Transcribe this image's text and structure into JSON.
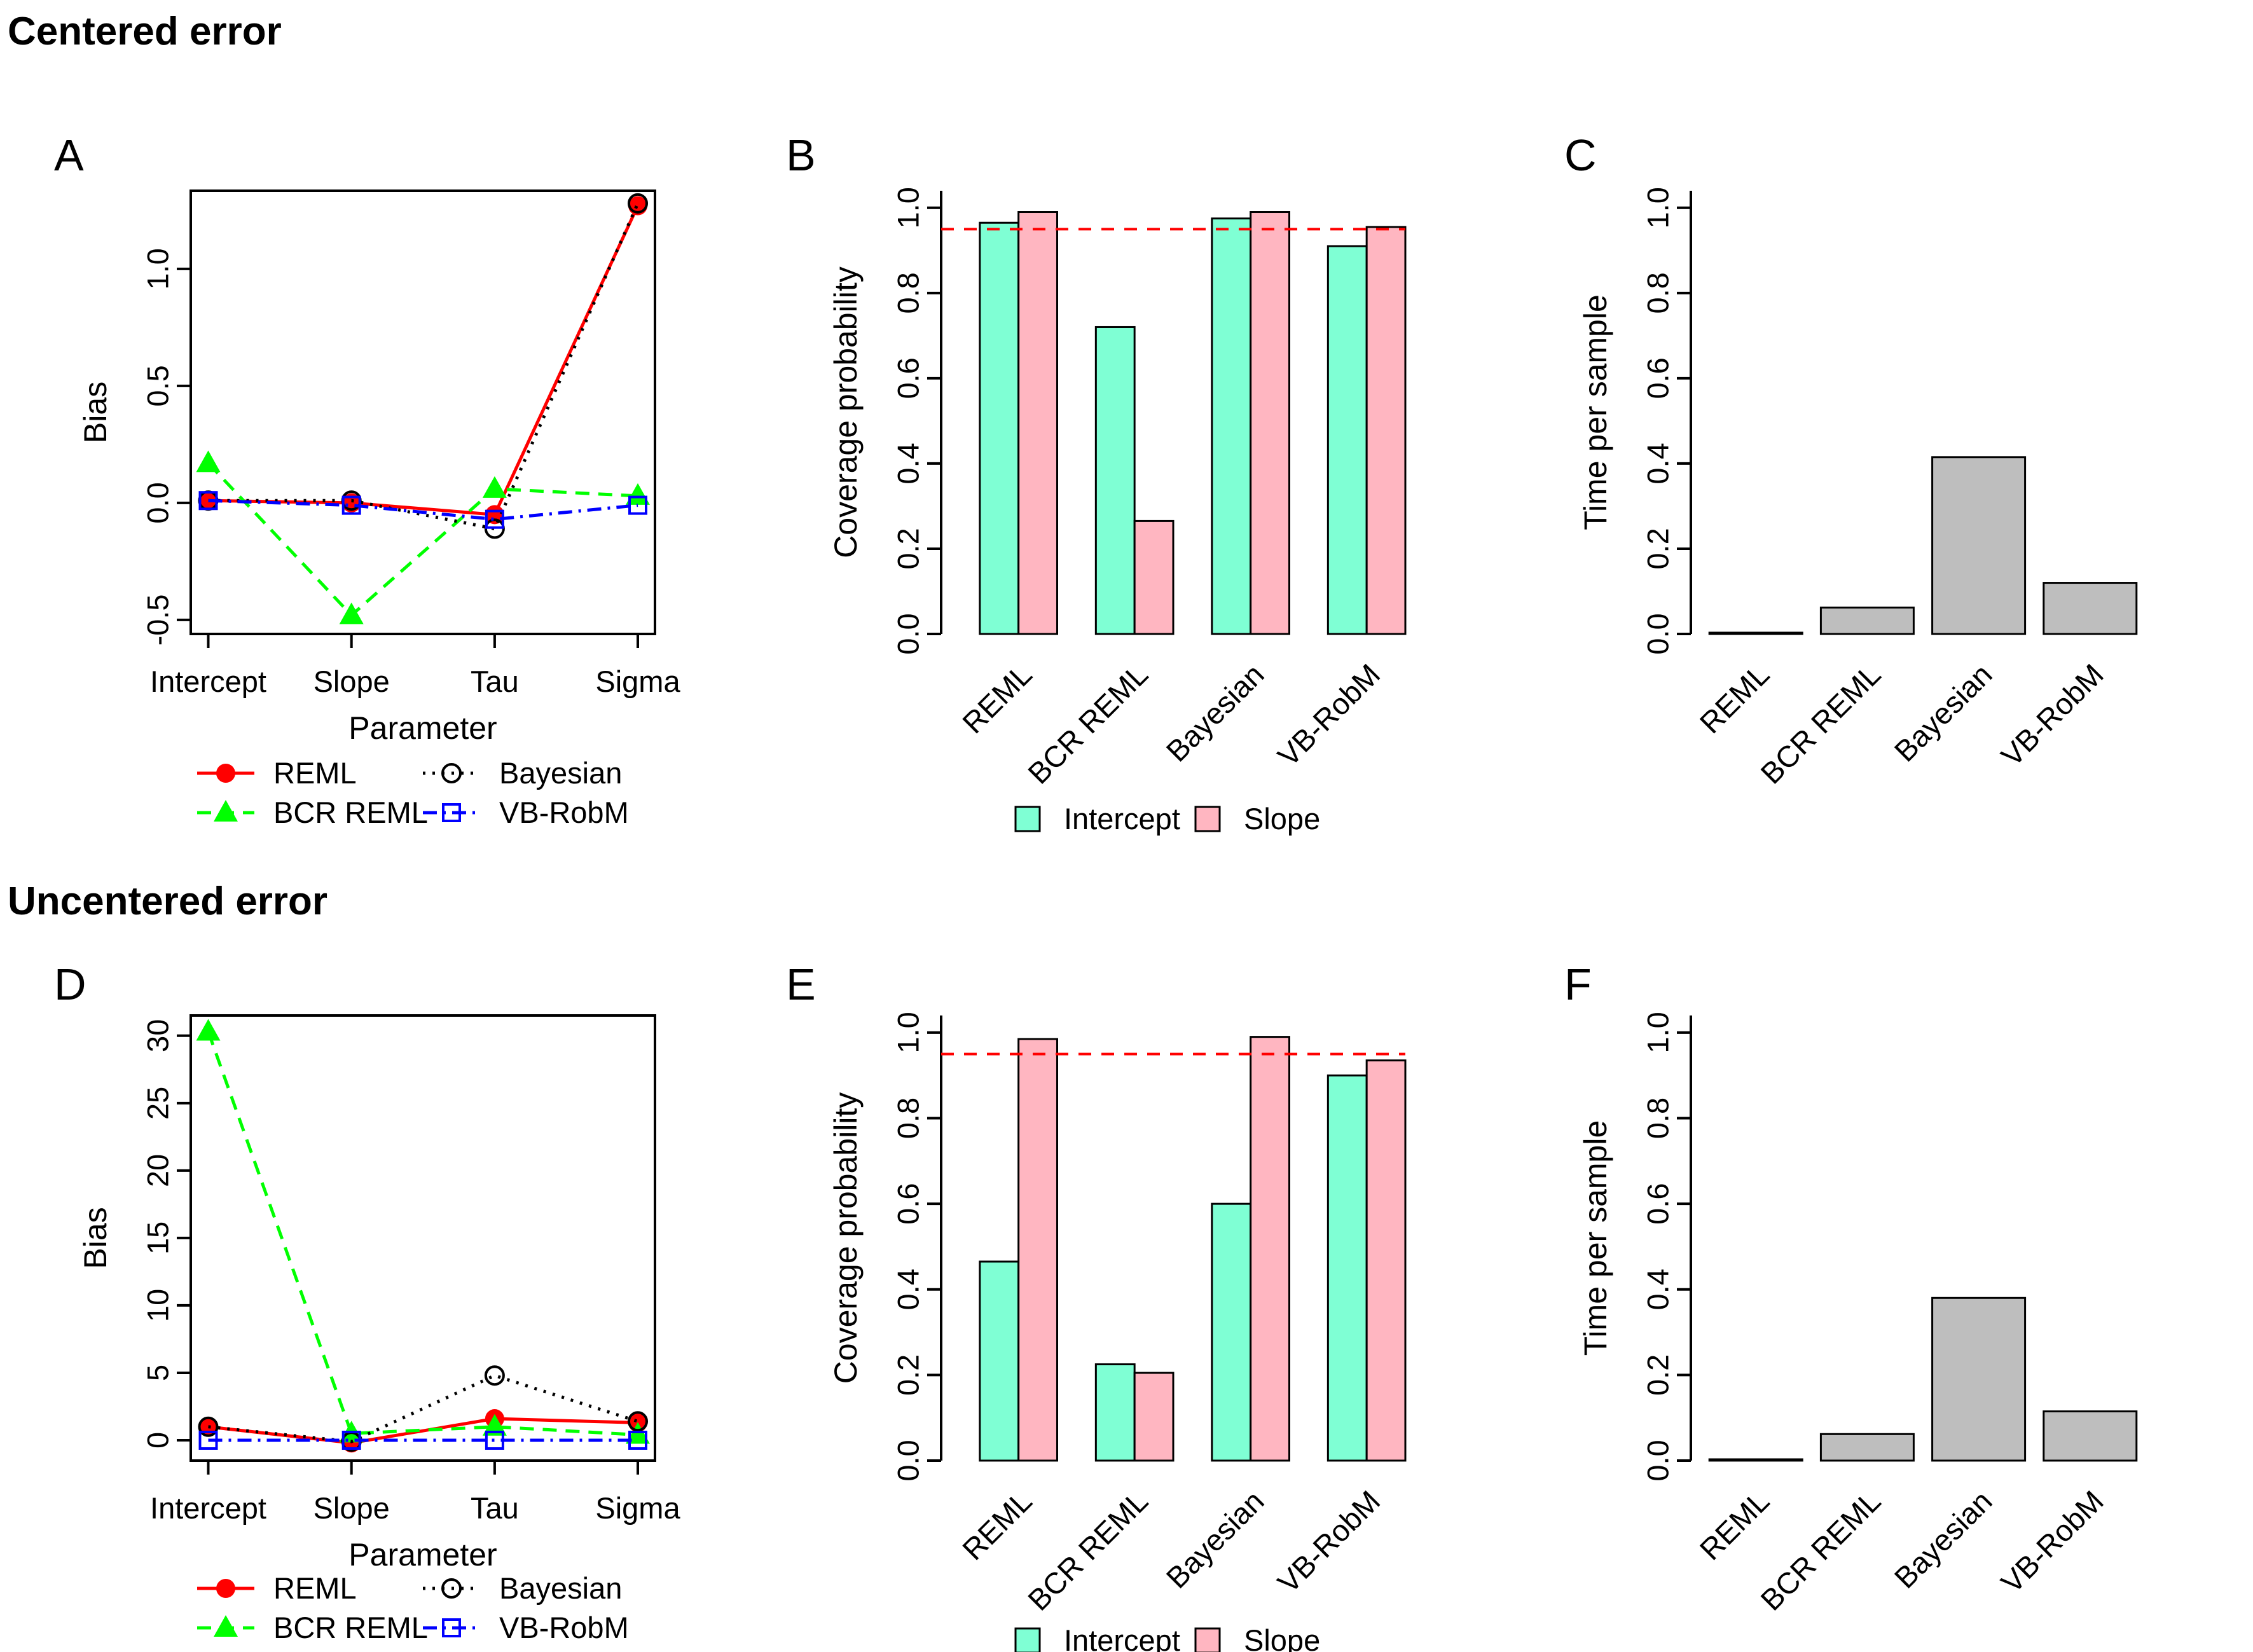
{
  "sections": [
    {
      "title": "Centered error"
    },
    {
      "title": "Uncentered error"
    }
  ],
  "styles": {
    "reml_color": "#FF0000",
    "bcr_reml_color": "#00FF00",
    "bayesian_color": "#000000",
    "vb_robm_color": "#0000FF",
    "intercept_fill": "#7FFFD4",
    "slope_fill": "#FFB6C1",
    "gray_bar_fill": "#BEBEBE",
    "ref_line_color": "#FF0000"
  },
  "chart_data": [
    {
      "panel": "A",
      "type": "line",
      "ylabel": "Bias",
      "xlabel": "Parameter",
      "categories": [
        "Intercept",
        "Slope",
        "Tau",
        "Sigma"
      ],
      "ylim": [
        -0.56,
        1.334
      ],
      "yticks": [
        {
          "v": -0.5,
          "label": "-0.5"
        },
        {
          "v": 0.0,
          "label": "0.0"
        },
        {
          "v": 0.5,
          "label": "0.5"
        },
        {
          "v": 1.0,
          "label": "1.0"
        }
      ],
      "series": [
        {
          "name": "REML",
          "color": "#FF0000",
          "line": "solid",
          "marker": "filled-circle",
          "values": [
            0.01,
            0.0,
            -0.05,
            1.27
          ]
        },
        {
          "name": "BCR REML",
          "color": "#00FF00",
          "line": "dashed",
          "marker": "filled-triangle",
          "values": [
            0.17,
            -0.48,
            0.06,
            0.03
          ]
        },
        {
          "name": "Bayesian",
          "color": "#000000",
          "line": "dotted",
          "marker": "open-circle",
          "values": [
            0.01,
            0.01,
            -0.11,
            1.28
          ]
        },
        {
          "name": "VB-RobM",
          "color": "#0000FF",
          "line": "dotdash",
          "marker": "open-square",
          "values": [
            0.01,
            -0.01,
            -0.07,
            -0.01
          ]
        }
      ]
    },
    {
      "panel": "B",
      "type": "grouped_bar",
      "ylabel": "Coverage probability",
      "categories": [
        "REML",
        "BCR REML",
        "Bayesian",
        "VB-RobM"
      ],
      "ylim": [
        0,
        1.04
      ],
      "yticks": [
        {
          "v": 0.0,
          "label": "0.0"
        },
        {
          "v": 0.2,
          "label": "0.2"
        },
        {
          "v": 0.4,
          "label": "0.4"
        },
        {
          "v": 0.6,
          "label": "0.6"
        },
        {
          "v": 0.8,
          "label": "0.8"
        },
        {
          "v": 1.0,
          "label": "1.0"
        }
      ],
      "ref_line": 0.95,
      "series": [
        {
          "name": "Intercept",
          "fill": "#7FFFD4",
          "values": [
            0.965,
            0.72,
            0.975,
            0.91
          ]
        },
        {
          "name": "Slope",
          "fill": "#FFB6C1",
          "values": [
            0.99,
            0.265,
            0.99,
            0.955
          ]
        }
      ]
    },
    {
      "panel": "C",
      "type": "bar",
      "ylabel": "Time per sample",
      "categories": [
        "REML",
        "BCR REML",
        "Bayesian",
        "VB-RobM"
      ],
      "ylim": [
        0,
        1.04
      ],
      "yticks": [
        {
          "v": 0.0,
          "label": "0.0"
        },
        {
          "v": 0.2,
          "label": "0.2"
        },
        {
          "v": 0.4,
          "label": "0.4"
        },
        {
          "v": 0.6,
          "label": "0.6"
        },
        {
          "v": 0.8,
          "label": "0.8"
        },
        {
          "v": 1.0,
          "label": "1.0"
        }
      ],
      "fill": "#BEBEBE",
      "values": [
        0.003,
        0.062,
        0.415,
        0.12
      ]
    },
    {
      "panel": "D",
      "type": "line",
      "ylabel": "Bias",
      "xlabel": "Parameter",
      "categories": [
        "Intercept",
        "Slope",
        "Tau",
        "Sigma"
      ],
      "ylim": [
        -1.51,
        31.5
      ],
      "yticks": [
        {
          "v": 0,
          "label": "0"
        },
        {
          "v": 5,
          "label": "5"
        },
        {
          "v": 10,
          "label": "10"
        },
        {
          "v": 15,
          "label": "15"
        },
        {
          "v": 20,
          "label": "20"
        },
        {
          "v": 25,
          "label": "25"
        },
        {
          "v": 30,
          "label": "30"
        }
      ],
      "series": [
        {
          "name": "REML",
          "color": "#FF0000",
          "line": "solid",
          "marker": "filled-circle",
          "values": [
            1.0,
            -0.2,
            1.6,
            1.3
          ]
        },
        {
          "name": "BCR REML",
          "color": "#00FF00",
          "line": "dashed",
          "marker": "filled-triangle",
          "values": [
            30.3,
            0.5,
            1.0,
            0.4
          ]
        },
        {
          "name": "Bayesian",
          "color": "#000000",
          "line": "dotted",
          "marker": "open-circle",
          "values": [
            1.0,
            -0.1,
            4.8,
            1.4
          ]
        },
        {
          "name": "VB-RobM",
          "color": "#0000FF",
          "line": "dotdash",
          "marker": "open-square",
          "values": [
            0.0,
            0.0,
            0.0,
            0.0
          ]
        }
      ]
    },
    {
      "panel": "E",
      "type": "grouped_bar",
      "ylabel": "Coverage probability",
      "categories": [
        "REML",
        "BCR REML",
        "Bayesian",
        "VB-RobM"
      ],
      "ylim": [
        0,
        1.04
      ],
      "yticks": [
        {
          "v": 0.0,
          "label": "0.0"
        },
        {
          "v": 0.2,
          "label": "0.2"
        },
        {
          "v": 0.4,
          "label": "0.4"
        },
        {
          "v": 0.6,
          "label": "0.6"
        },
        {
          "v": 0.8,
          "label": "0.8"
        },
        {
          "v": 1.0,
          "label": "1.0"
        }
      ],
      "ref_line": 0.95,
      "series": [
        {
          "name": "Intercept",
          "fill": "#7FFFD4",
          "values": [
            0.465,
            0.225,
            0.6,
            0.9
          ]
        },
        {
          "name": "Slope",
          "fill": "#FFB6C1",
          "values": [
            0.985,
            0.205,
            0.99,
            0.935
          ]
        }
      ]
    },
    {
      "panel": "F",
      "type": "bar",
      "ylabel": "Time per sample",
      "categories": [
        "REML",
        "BCR REML",
        "Bayesian",
        "VB-RobM"
      ],
      "ylim": [
        0,
        1.04
      ],
      "yticks": [
        {
          "v": 0.0,
          "label": "0.0"
        },
        {
          "v": 0.2,
          "label": "0.2"
        },
        {
          "v": 0.4,
          "label": "0.4"
        },
        {
          "v": 0.6,
          "label": "0.6"
        },
        {
          "v": 0.8,
          "label": "0.8"
        },
        {
          "v": 1.0,
          "label": "1.0"
        }
      ],
      "fill": "#BEBEBE",
      "values": [
        0.003,
        0.062,
        0.38,
        0.115
      ]
    }
  ]
}
